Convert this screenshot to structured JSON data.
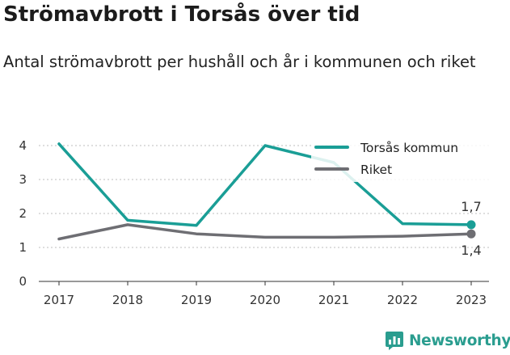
{
  "header": {
    "title": "Strömavbrott i Torsås över tid",
    "subtitle": "Antal strömavbrott per hushåll och år i kommunen och riket"
  },
  "brand": {
    "name": "Newsworthy"
  },
  "chart_data": {
    "type": "line",
    "title": "Strömavbrott i Torsås över tid",
    "subtitle": "Antal strömavbrott per hushåll och år i kommunen och riket",
    "xlabel": "",
    "ylabel": "",
    "x": [
      "2017",
      "2018",
      "2019",
      "2020",
      "2021",
      "2022",
      "2023"
    ],
    "ylim": [
      0,
      4.2
    ],
    "yticks": [
      0,
      1,
      2,
      3,
      4
    ],
    "grid": true,
    "legend_position": "top-right",
    "series": [
      {
        "name": "Torsås kommun",
        "color": "#1a9e96",
        "values": [
          4.05,
          1.8,
          1.65,
          4.0,
          3.5,
          1.7,
          1.67
        ]
      },
      {
        "name": "Riket",
        "color": "#6e6e73",
        "values": [
          1.25,
          1.67,
          1.4,
          1.3,
          1.3,
          1.33,
          1.4
        ]
      }
    ],
    "end_labels": [
      "1,7",
      "1,4"
    ]
  }
}
